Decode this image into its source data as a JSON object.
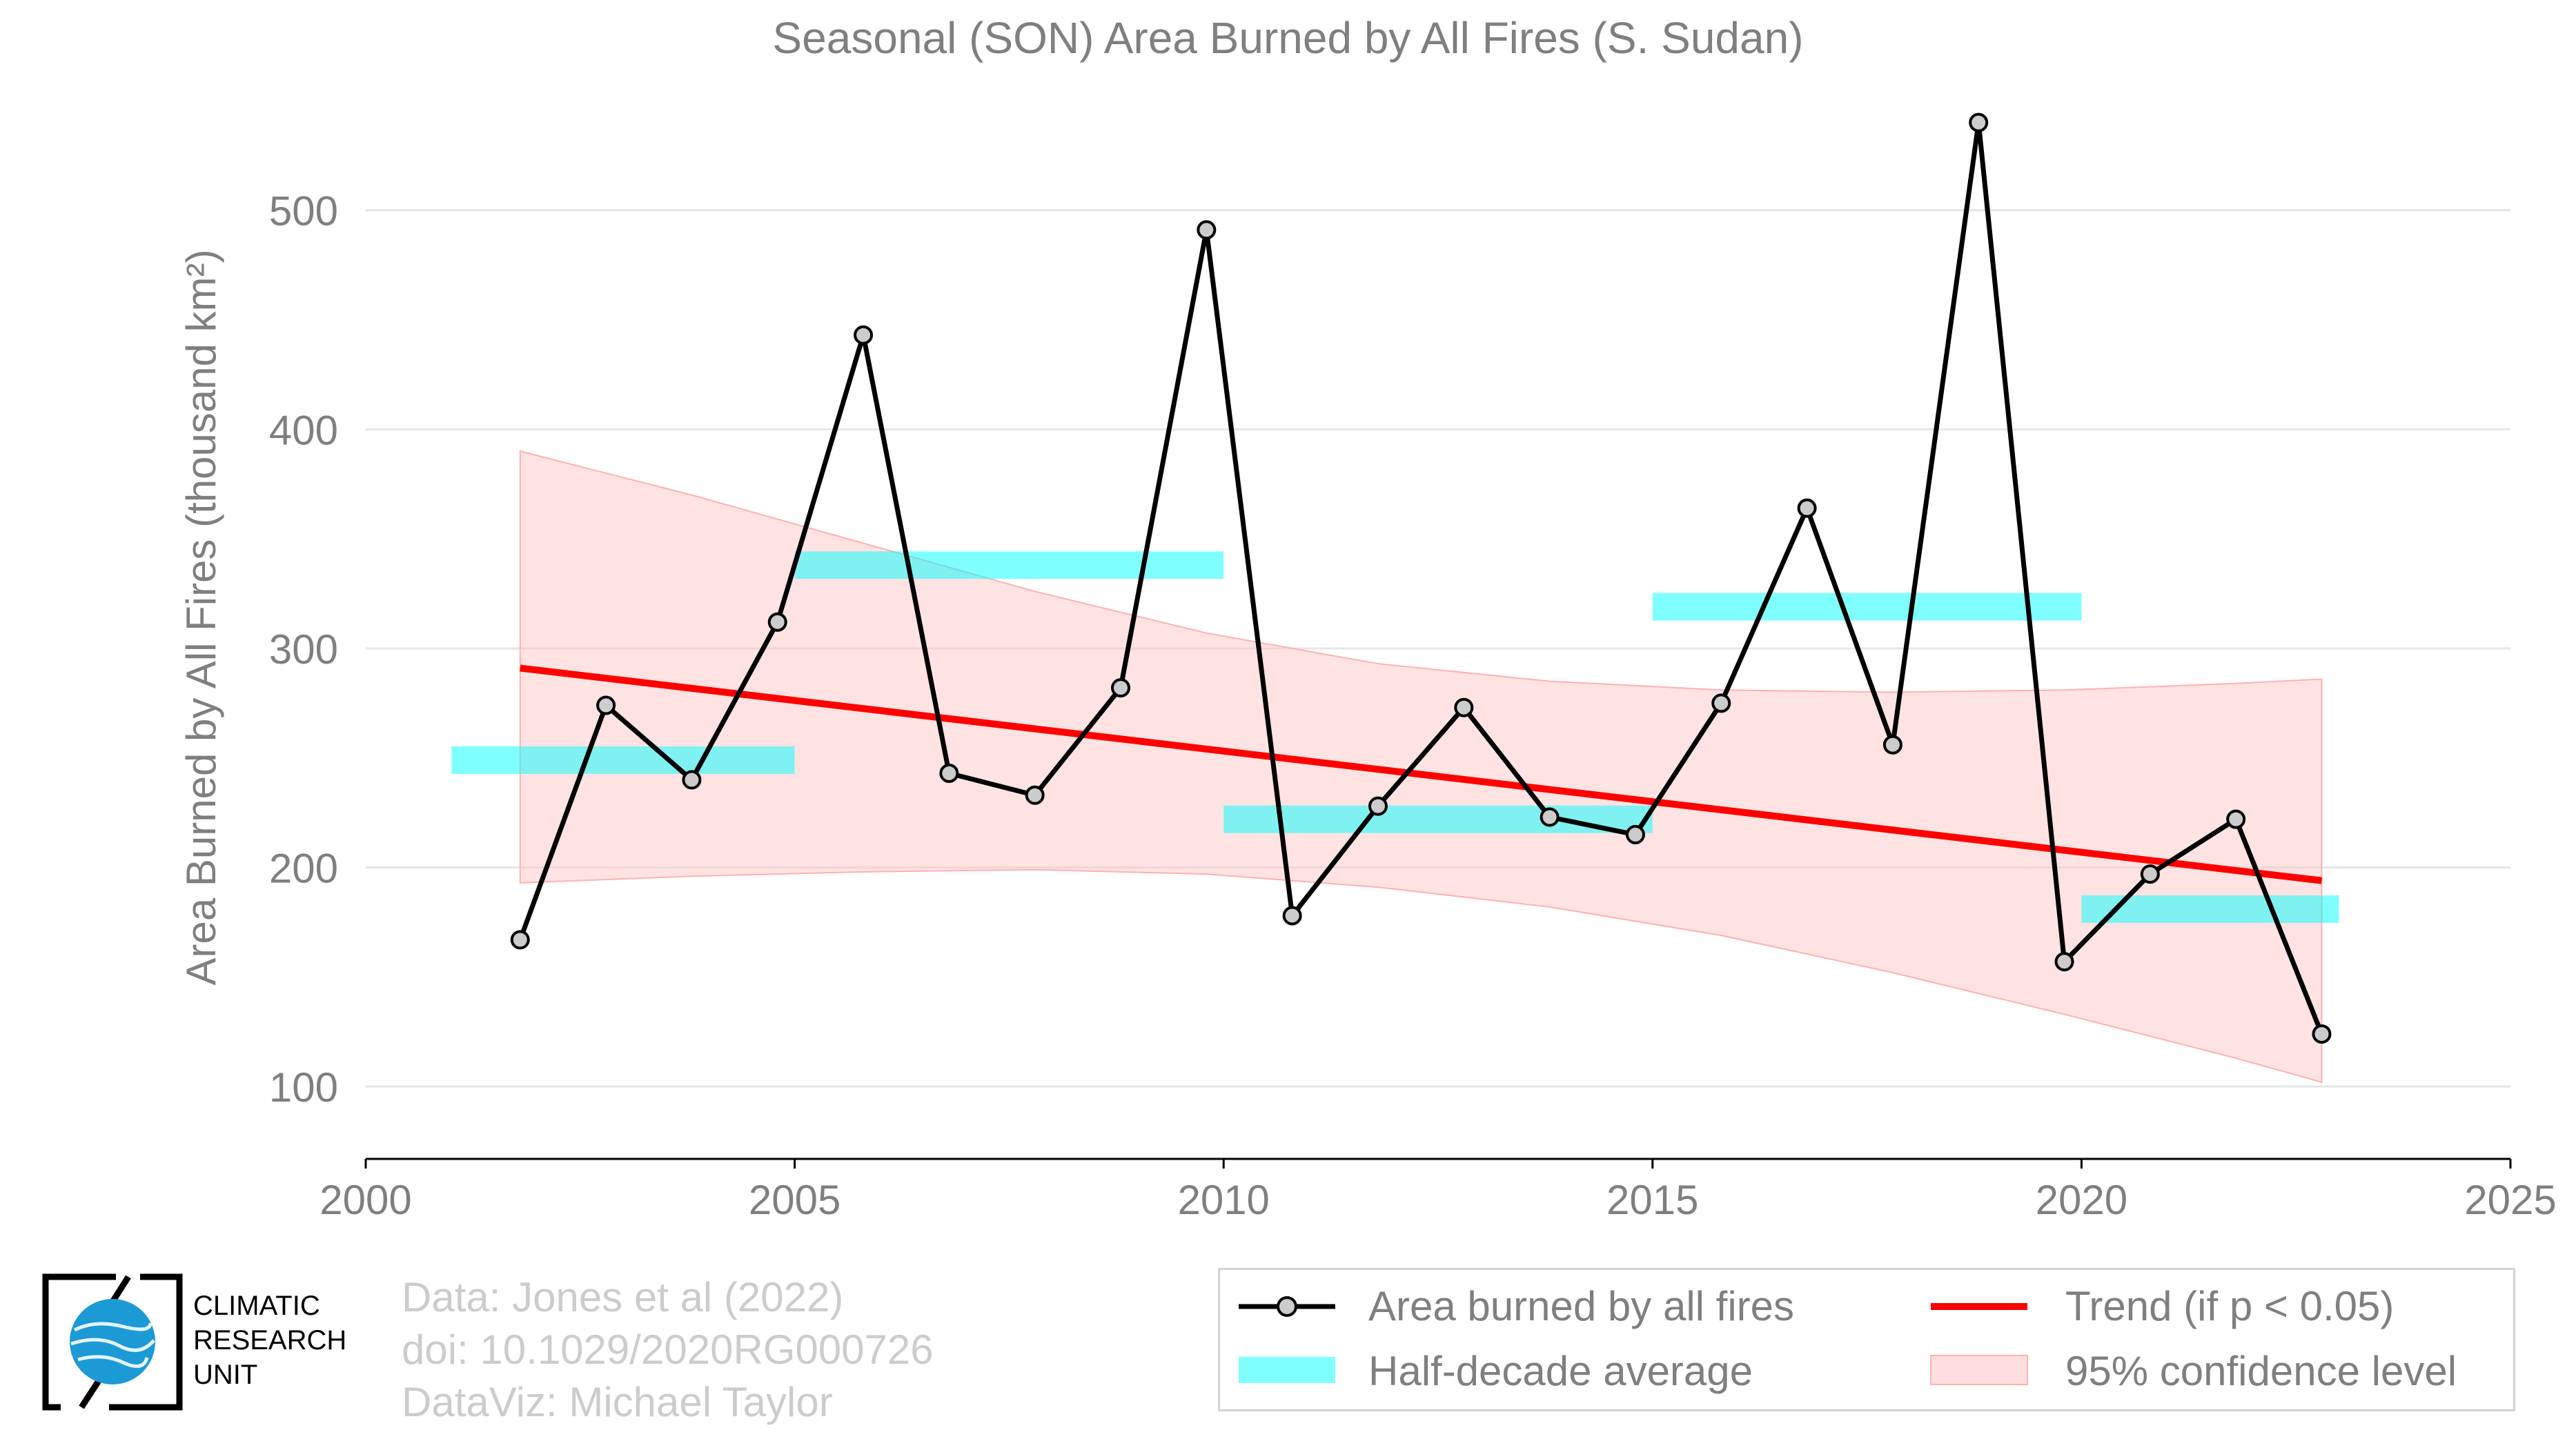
{
  "chart_data": {
    "type": "line",
    "title": "Seasonal (SON) Area Burned by All Fires (S. Sudan)",
    "ylabel": "Area Burned by All Fires (thousand km²)",
    "xlabel": "",
    "xlim": [
      2000,
      2025
    ],
    "ylim": [
      67,
      555
    ],
    "x_ticks": [
      2000,
      2005,
      2010,
      2015,
      2020,
      2025
    ],
    "y_ticks": [
      100,
      200,
      300,
      400,
      500
    ],
    "grid": "horizontal",
    "series": [
      {
        "name": "Area burned by all fires",
        "color": "#000000",
        "x": [
          2001.8,
          2002.8,
          2003.8,
          2004.8,
          2005.8,
          2006.8,
          2007.8,
          2008.8,
          2009.8,
          2010.8,
          2011.8,
          2012.8,
          2013.8,
          2014.8,
          2015.8,
          2016.8,
          2017.8,
          2018.8,
          2019.8,
          2020.8,
          2021.8,
          2022.8
        ],
        "values": [
          167,
          274,
          240,
          312,
          443,
          243,
          233,
          282,
          491,
          178,
          228,
          273,
          223,
          215,
          275,
          364,
          256,
          540,
          157,
          197,
          222,
          124
        ]
      },
      {
        "name": "Half-decade average",
        "color": "#00ffff",
        "segments": [
          {
            "x0": 2001,
            "x1": 2005,
            "value": 249
          },
          {
            "x0": 2005,
            "x1": 2010,
            "value": 338
          },
          {
            "x0": 2010,
            "x1": 2015,
            "value": 222
          },
          {
            "x0": 2015,
            "x1": 2020,
            "value": 319
          },
          {
            "x0": 2020,
            "x1": 2023,
            "value": 181
          }
        ]
      },
      {
        "name": "Trend (if p < 0.05)",
        "color": "#ff0000",
        "x": [
          2001.8,
          2022.8
        ],
        "values": [
          291,
          194
        ]
      },
      {
        "name": "95% confidence level",
        "color": "#ffc0c0",
        "x": [
          2001.8,
          2003.8,
          2005.8,
          2007.8,
          2009.8,
          2011.8,
          2013.8,
          2015.8,
          2017.8,
          2019.8,
          2021.8,
          2022.8
        ],
        "upper": [
          390,
          370,
          348,
          326,
          307,
          293,
          285,
          281,
          280,
          281,
          284,
          286
        ],
        "lower": [
          193,
          196,
          198,
          199,
          197,
          191,
          182,
          169,
          152,
          133,
          113,
          102
        ]
      }
    ]
  },
  "legend": {
    "items": [
      {
        "label": "Area burned by all fires"
      },
      {
        "label": "Trend (if p < 0.05)"
      },
      {
        "label": "Half-decade average"
      },
      {
        "label": "95% confidence level"
      }
    ]
  },
  "credits": {
    "line1": "Data: Jones et al (2022)",
    "line2": "doi: 10.1029/2020RG000726",
    "line3": "DataViz: Michael Taylor"
  },
  "logo": {
    "line1": "CLIMATIC",
    "line2": "RESEARCH",
    "line3": "UNIT"
  }
}
